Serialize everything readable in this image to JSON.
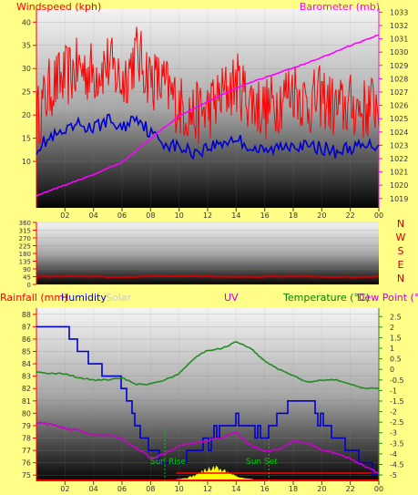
{
  "header": {
    "windspeed_label": "Windspeed (kph)",
    "barometer_label": "Barometer (mb)",
    "bottom_labels": {
      "rainfall": "Rainfall (mm)",
      "humidity": "Humidity",
      "solar": "Solar",
      "uv": "UV",
      "temperature": "Temperature (°C)",
      "dewpoint": "Dew Point (°C"
    },
    "sunrise": "Sun Rise",
    "sunset": "Sun Set"
  },
  "colors": {
    "background": "#ffff88",
    "wind_gust": "#ff0000",
    "wind_avg": "#0000cc",
    "barometer": "#ff00ff",
    "direction": "#cc0000",
    "humidity": "#0000cc",
    "temperature": "#228b22",
    "dewpoint": "#cc00cc",
    "solar": "#ffff00",
    "rain": "#ff0000",
    "axis_left": "#ff0000",
    "axis_right": "#ff00ff",
    "sun_marker": "#00cc00"
  },
  "chart_data": [
    {
      "type": "line",
      "x_ticks": [
        "02",
        "04",
        "06",
        "08",
        "10",
        "12",
        "14",
        "16",
        "18",
        "20",
        "22",
        "00"
      ],
      "left_axis": {
        "ticks": [
          10,
          15,
          20,
          25,
          30,
          35,
          40
        ],
        "ylim": [
          0,
          43
        ]
      },
      "right_axis": {
        "ticks": [
          1019,
          1020,
          1021,
          1022,
          1023,
          1024,
          1025,
          1026,
          1027,
          1028,
          1029,
          1030,
          1031,
          1032,
          1033
        ],
        "ylim": [
          1018.3,
          1033.3
        ]
      },
      "series": [
        {
          "role": "wind_gust",
          "hours": [
            0,
            1,
            2,
            3,
            4,
            5,
            6,
            7,
            8,
            9,
            10,
            11,
            12,
            13,
            14,
            15,
            16,
            17,
            18,
            19,
            20,
            21,
            22,
            23,
            24
          ],
          "values": [
            17,
            24,
            26,
            28,
            27,
            29,
            25,
            31,
            26,
            24,
            20,
            18,
            19,
            22,
            25,
            21,
            19,
            21,
            24,
            20,
            22,
            19,
            20,
            19,
            21
          ]
        },
        {
          "role": "wind_avg",
          "hours": [
            0,
            1,
            2,
            3,
            4,
            5,
            6,
            7,
            8,
            9,
            10,
            11,
            12,
            13,
            14,
            15,
            16,
            17,
            18,
            19,
            20,
            21,
            22,
            23,
            24
          ],
          "values": [
            13,
            15,
            16,
            18,
            17,
            19,
            17,
            20,
            16,
            14,
            13,
            12,
            13,
            14,
            15,
            13,
            12,
            13,
            14,
            13,
            13,
            12,
            13,
            13,
            14
          ]
        },
        {
          "role": "barometer",
          "hours": [
            0,
            2,
            4,
            6,
            8,
            10,
            12,
            14,
            16,
            18,
            20,
            22,
            24
          ],
          "values": [
            1019.2,
            1020.0,
            1020.8,
            1021.7,
            1023.5,
            1025.2,
            1026.3,
            1027.3,
            1028.1,
            1028.8,
            1029.6,
            1030.5,
            1031.3
          ]
        }
      ]
    },
    {
      "type": "line",
      "left_axis": {
        "ticks": [
          0,
          45,
          90,
          135,
          180,
          225,
          270,
          315,
          360
        ],
        "ylim": [
          0,
          360
        ]
      },
      "right_labels": [
        "N",
        "W",
        "S",
        "E",
        "N"
      ],
      "series": [
        {
          "role": "direction",
          "hours": [
            0,
            3,
            6,
            9,
            12,
            15,
            18,
            21,
            24
          ],
          "values": [
            45,
            48,
            42,
            50,
            46,
            44,
            47,
            43,
            45
          ]
        }
      ]
    },
    {
      "type": "line",
      "x_ticks": [
        "02",
        "04",
        "06",
        "08",
        "10",
        "12",
        "14",
        "16",
        "18",
        "20",
        "22",
        "00"
      ],
      "left_axis": {
        "ticks": [
          75,
          76,
          77,
          78,
          79,
          80,
          81,
          82,
          83,
          84,
          85,
          86,
          87,
          88
        ],
        "ylim": [
          74.5,
          88.5
        ]
      },
      "right_axis": {
        "ticks": [
          -5,
          -4.5,
          -4,
          -3.5,
          -3,
          -2.5,
          -2,
          -1.5,
          -1,
          -0.5,
          0,
          0.5,
          1,
          1.5,
          2,
          2.5
        ],
        "ylim": [
          -5.3,
          2.9
        ]
      },
      "series": [
        {
          "role": "humidity",
          "hours": [
            0,
            2,
            3,
            4,
            5,
            5.5,
            6,
            6.5,
            7,
            7.5,
            8,
            9,
            10,
            11,
            12,
            13,
            14,
            15,
            16,
            17,
            18,
            19,
            20,
            21,
            22,
            23,
            24
          ],
          "values": [
            87,
            87,
            85,
            84,
            83,
            83,
            82,
            81,
            79,
            78,
            77,
            76,
            76,
            77,
            78,
            79,
            79,
            79,
            78,
            80,
            81,
            81,
            79,
            78,
            77,
            76,
            75
          ]
        },
        {
          "role": "temperature",
          "hours": [
            0,
            1,
            2,
            3,
            4,
            5,
            6,
            7,
            8,
            9,
            10,
            11,
            12,
            13,
            14,
            15,
            16,
            17,
            18,
            19,
            20,
            21,
            22,
            23,
            24
          ],
          "values": [
            -0.1,
            -0.2,
            -0.2,
            -0.4,
            -0.5,
            -0.5,
            -0.4,
            -0.7,
            -0.7,
            -0.5,
            -0.2,
            0.5,
            0.9,
            1.0,
            1.3,
            1.0,
            0.4,
            0.0,
            -0.3,
            -0.6,
            -0.5,
            -0.5,
            -0.7,
            -0.9,
            -0.9
          ]
        },
        {
          "role": "dewpoint",
          "hours": [
            0,
            1,
            2,
            3,
            4,
            5,
            6,
            7,
            8,
            9,
            10,
            11,
            12,
            13,
            14,
            15,
            16,
            17,
            18,
            19,
            20,
            21,
            22,
            23,
            24
          ],
          "values": [
            -2.5,
            -2.6,
            -2.8,
            -2.9,
            -3.1,
            -3.1,
            -3.3,
            -3.7,
            -4.2,
            -4.0,
            -3.6,
            -3.5,
            -3.4,
            -3.2,
            -3.0,
            -3.6,
            -3.9,
            -3.8,
            -3.4,
            -3.5,
            -3.8,
            -4.0,
            -4.2,
            -4.6,
            -4.9
          ]
        }
      ]
    }
  ]
}
